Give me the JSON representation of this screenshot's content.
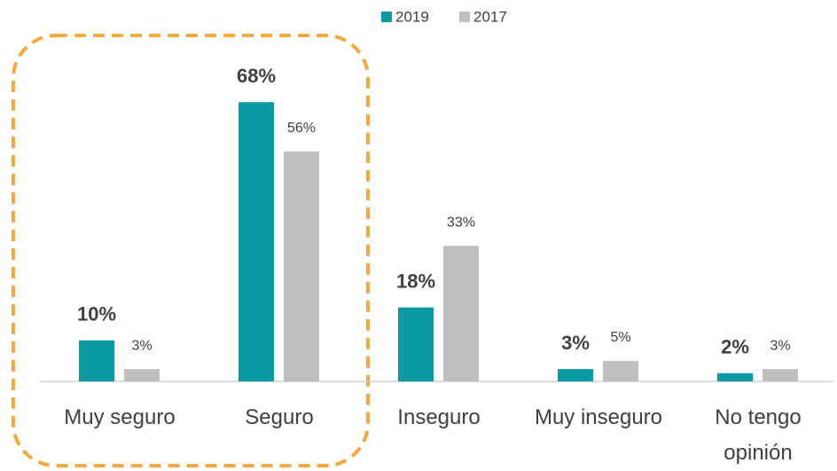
{
  "chart_data": {
    "type": "bar",
    "categories": [
      "Muy seguro",
      "Seguro",
      "Inseguro",
      "Muy inseguro",
      "No tengo opinión"
    ],
    "series": [
      {
        "name": "2019",
        "color": "#0a9aa4",
        "values": [
          10,
          68,
          18,
          3,
          2
        ],
        "value_labels": [
          "10%",
          "68%",
          "18%",
          "3%",
          "2%"
        ]
      },
      {
        "name": "2017",
        "color": "#bfbfbf",
        "values": [
          3,
          56,
          33,
          5,
          3
        ],
        "value_labels": [
          "3%",
          "56%",
          "33%",
          "5%",
          "3%"
        ]
      }
    ],
    "legend": "top"
  }
}
